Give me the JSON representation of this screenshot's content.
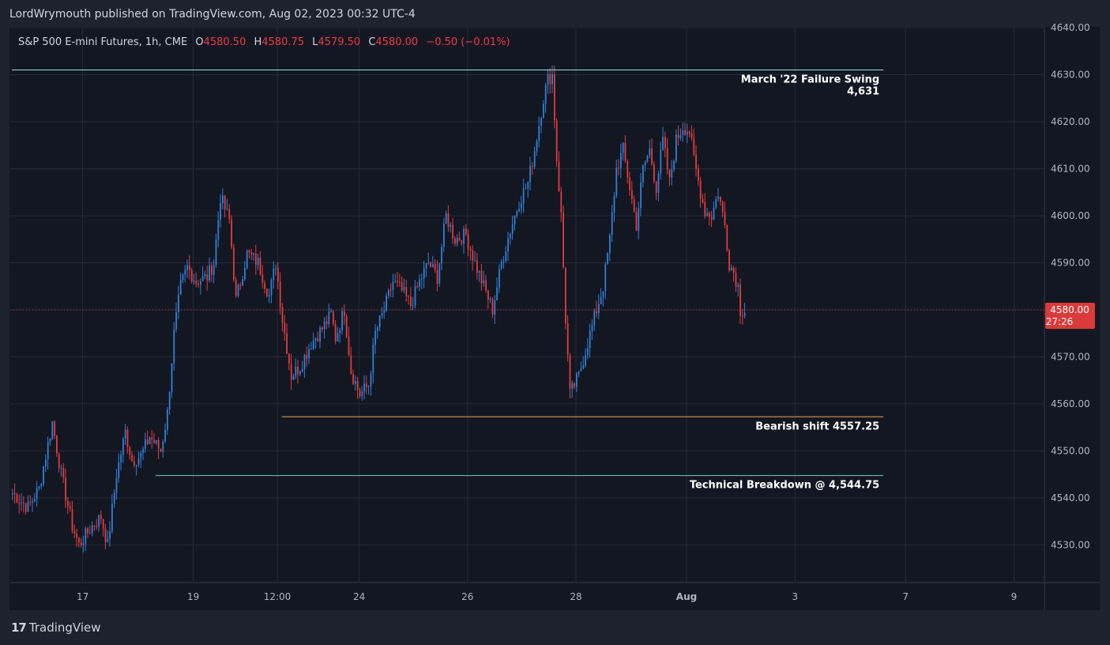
{
  "header": {
    "publisher_line": "LordWrymouth published on TradingView.com, Aug 02, 2023 00:32 UTC-4"
  },
  "legend": {
    "symbol": "S&P 500 E-mini Futures, 1h, CME",
    "open_label": "O",
    "open": "4580.50",
    "high_label": "H",
    "high": "4580.75",
    "low_label": "L",
    "low": "4579.50",
    "close_label": "C",
    "close": "4580.00",
    "change": "−0.50 (−0.01%)"
  },
  "price_scale": {
    "current_price": "4580.00",
    "countdown": "27:26"
  },
  "footer": {
    "brand": "TradingView"
  },
  "colors": {
    "up": "#2f7fd8",
    "down": "#e23b3b",
    "grid": "#252a36",
    "background": "#131722",
    "current_price_bg": "#d93a3a",
    "failure_swing_line": "#8fe0e6",
    "bearish_shift_line": "#f0a24a",
    "breakdown_line": "#5fd3c8"
  },
  "chart_data": {
    "type": "candlestick",
    "y_axis": {
      "min": 4522,
      "max": 4640,
      "ticks": [
        "4530.00",
        "4540.00",
        "4550.00",
        "4560.00",
        "4570.00",
        "4580.00",
        "4590.00",
        "4600.00",
        "4610.00",
        "4620.00",
        "4630.00",
        "4640.00"
      ],
      "tick_values": [
        4530,
        4540,
        4550,
        4560,
        4570,
        4580,
        4590,
        4600,
        4610,
        4620,
        4630,
        4640
      ]
    },
    "x_axis": {
      "labels": [
        "17",
        "19",
        "12:00",
        "24",
        "26",
        "28",
        "Aug",
        "3",
        "7",
        "9"
      ],
      "label_bold": [
        false,
        false,
        false,
        false,
        false,
        false,
        true,
        false,
        false,
        false
      ],
      "label_bar_index": [
        32,
        82,
        120,
        157,
        206,
        255,
        305,
        354,
        404,
        453
      ]
    },
    "bar_count": 332,
    "levels": [
      {
        "label": "March '22 Failure Swing",
        "sublabel": "4,631",
        "price": 4631,
        "from_bar": 0,
        "to_bar": 394,
        "color_key": "failure_swing_line"
      },
      {
        "label": "Bearish shift 4557.25",
        "sublabel": "",
        "price": 4557.25,
        "from_bar": 122,
        "to_bar": 394,
        "color_key": "bearish_shift_line"
      },
      {
        "label": "Technical Breakdown @ 4,544.75",
        "sublabel": "",
        "price": 4544.75,
        "from_bar": 65,
        "to_bar": 394,
        "color_key": "breakdown_line"
      }
    ],
    "current_price": 4580.0,
    "path_points": [
      [
        0,
        4541
      ],
      [
        7,
        4538
      ],
      [
        12,
        4542
      ],
      [
        18,
        4556
      ],
      [
        22,
        4545
      ],
      [
        27,
        4534
      ],
      [
        30,
        4530
      ],
      [
        36,
        4534
      ],
      [
        40,
        4536
      ],
      [
        43,
        4530
      ],
      [
        47,
        4545
      ],
      [
        51,
        4554
      ],
      [
        54,
        4548
      ],
      [
        58,
        4549
      ],
      [
        62,
        4553
      ],
      [
        67,
        4550
      ],
      [
        70,
        4558
      ],
      [
        73,
        4575
      ],
      [
        76,
        4585
      ],
      [
        79,
        4589
      ],
      [
        83,
        4586
      ],
      [
        88,
        4587
      ],
      [
        91,
        4590
      ],
      [
        94,
        4604
      ],
      [
        98,
        4599
      ],
      [
        101,
        4582
      ],
      [
        106,
        4592
      ],
      [
        111,
        4590
      ],
      [
        116,
        4583
      ],
      [
        119,
        4590
      ],
      [
        122,
        4578
      ],
      [
        126,
        4566
      ],
      [
        130,
        4568
      ],
      [
        135,
        4573
      ],
      [
        140,
        4576
      ],
      [
        144,
        4579
      ],
      [
        146,
        4574
      ],
      [
        150,
        4580
      ],
      [
        153,
        4567
      ],
      [
        157,
        4562
      ],
      [
        161,
        4564
      ],
      [
        164,
        4575
      ],
      [
        168,
        4580
      ],
      [
        172,
        4586
      ],
      [
        176,
        4584
      ],
      [
        180,
        4581
      ],
      [
        184,
        4586
      ],
      [
        188,
        4590
      ],
      [
        192,
        4587
      ],
      [
        196,
        4600
      ],
      [
        200,
        4595
      ],
      [
        205,
        4596
      ],
      [
        209,
        4590
      ],
      [
        213,
        4585
      ],
      [
        217,
        4580
      ],
      [
        221,
        4590
      ],
      [
        225,
        4597
      ],
      [
        229,
        4603
      ],
      [
        233,
        4607
      ],
      [
        236,
        4614
      ],
      [
        240,
        4625
      ],
      [
        242,
        4629
      ],
      [
        244,
        4630
      ],
      [
        246,
        4612
      ],
      [
        248,
        4600
      ],
      [
        250,
        4578
      ],
      [
        252,
        4562
      ],
      [
        256,
        4566
      ],
      [
        260,
        4573
      ],
      [
        264,
        4580
      ],
      [
        267,
        4585
      ],
      [
        270,
        4595
      ],
      [
        273,
        4610
      ],
      [
        276,
        4614
      ],
      [
        279,
        4606
      ],
      [
        282,
        4598
      ],
      [
        285,
        4610
      ],
      [
        288,
        4614
      ],
      [
        291,
        4606
      ],
      [
        294,
        4616
      ],
      [
        297,
        4607
      ],
      [
        300,
        4616
      ],
      [
        303,
        4619
      ],
      [
        306,
        4618
      ],
      [
        308,
        4612
      ],
      [
        311,
        4605
      ],
      [
        313,
        4601
      ],
      [
        316,
        4600
      ],
      [
        319,
        4605
      ],
      [
        322,
        4598
      ],
      [
        324,
        4590
      ],
      [
        326,
        4588
      ],
      [
        328,
        4585
      ],
      [
        329,
        4580
      ],
      [
        331,
        4580
      ]
    ]
  }
}
